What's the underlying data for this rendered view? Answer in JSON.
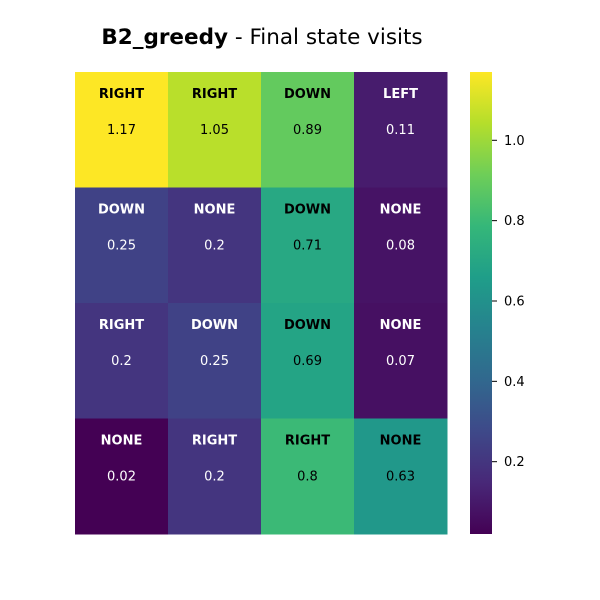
{
  "chart_data": {
    "type": "heatmap",
    "title": {
      "name": "B2_greedy",
      "rest": " - Final state visits"
    },
    "rows": 4,
    "cols": 4,
    "cells": [
      [
        {
          "action": "RIGHT",
          "value": 1.17
        },
        {
          "action": "RIGHT",
          "value": 1.05
        },
        {
          "action": "DOWN",
          "value": 0.89
        },
        {
          "action": "LEFT",
          "value": 0.11
        }
      ],
      [
        {
          "action": "DOWN",
          "value": 0.25
        },
        {
          "action": "NONE",
          "value": 0.2
        },
        {
          "action": "DOWN",
          "value": 0.71
        },
        {
          "action": "NONE",
          "value": 0.08
        }
      ],
      [
        {
          "action": "RIGHT",
          "value": 0.2
        },
        {
          "action": "DOWN",
          "value": 0.25
        },
        {
          "action": "DOWN",
          "value": 0.69
        },
        {
          "action": "NONE",
          "value": 0.07
        }
      ],
      [
        {
          "action": "NONE",
          "value": 0.02
        },
        {
          "action": "RIGHT",
          "value": 0.2
        },
        {
          "action": "RIGHT",
          "value": 0.8
        },
        {
          "action": "NONE",
          "value": 0.63
        }
      ]
    ],
    "colormap": "viridis",
    "vmin": 0.02,
    "vmax": 1.17,
    "colorbar_ticks": [
      0.2,
      0.4,
      0.6,
      0.8,
      1.0
    ],
    "colorbar_tick_labels": [
      "0.2",
      "0.4",
      "0.6",
      "0.8",
      "1.0"
    ],
    "grid": false,
    "xlabel": "",
    "ylabel": ""
  }
}
